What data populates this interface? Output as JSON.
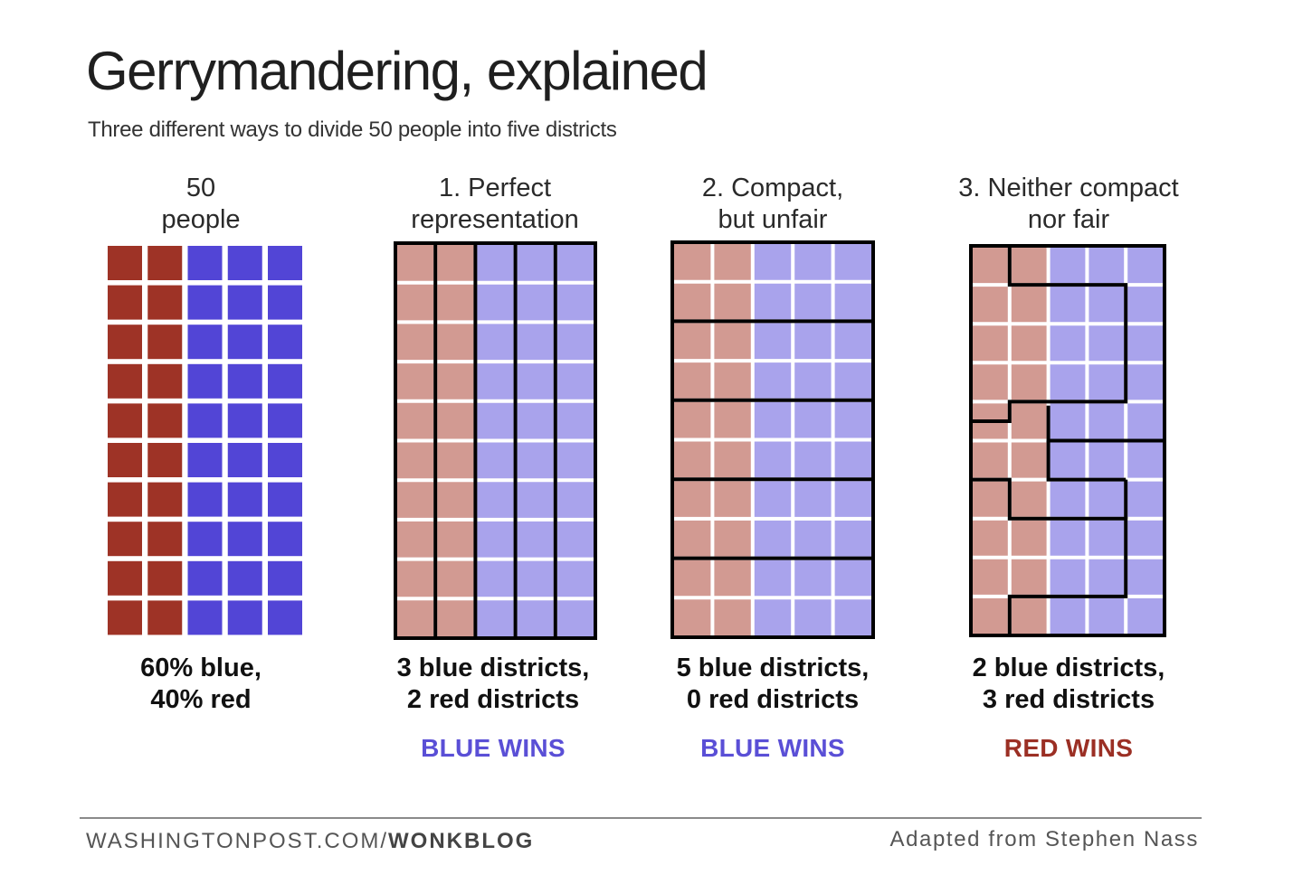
{
  "title": "Gerrymandering, explained",
  "subtitle": "Three different ways to divide 50 people into five districts",
  "colors": {
    "red_solid": "#9e3326",
    "blue_solid": "#5245d6",
    "red_light": "#d29a92",
    "blue_light": "#a9a3ec",
    "border": "#000000",
    "blue_wins": "#5a4fd6",
    "red_wins": "#9b2f24"
  },
  "grid": {
    "rows": 10,
    "cols": 5,
    "red_columns": 2
  },
  "panels": [
    {
      "heading": [
        "50",
        "people"
      ],
      "result": [
        "60% blue,",
        "40% red"
      ],
      "verdict": "",
      "style": "solid",
      "districts": "none"
    },
    {
      "heading": [
        "1. Perfect",
        "representation"
      ],
      "result": [
        "3 blue districts,",
        "2 red districts"
      ],
      "verdict": "BLUE WINS",
      "verdict_color": "blue",
      "style": "light",
      "districts": "columns"
    },
    {
      "heading": [
        "2. Compact,",
        "but unfair"
      ],
      "result": [
        "5 blue districts,",
        "0 red districts"
      ],
      "verdict": "BLUE WINS",
      "verdict_color": "blue",
      "style": "light",
      "districts": "rows"
    },
    {
      "heading": [
        "3. Neither compact",
        "nor fair"
      ],
      "result": [
        "2 blue districts,",
        "3 red districts"
      ],
      "verdict": "RED WINS",
      "verdict_color": "red",
      "style": "light",
      "districts": "snake"
    }
  ],
  "footer": {
    "source_prefix": "WASHINGTONPOST.COM/",
    "source_bold": "WONKBLOG",
    "credit": "Adapted from Stephen Nass"
  }
}
